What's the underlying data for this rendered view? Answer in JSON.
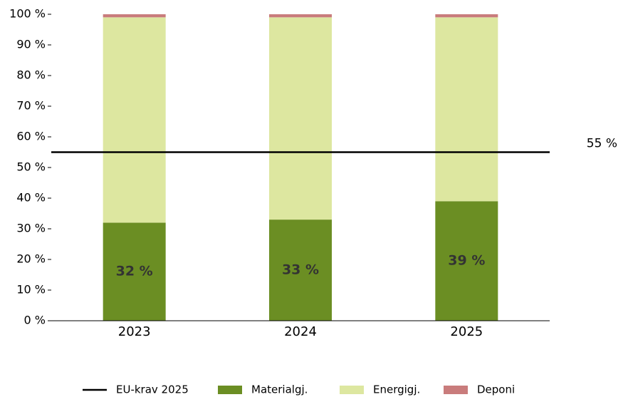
{
  "chart_data": {
    "type": "stacked_bar",
    "categories": [
      "2023",
      "2024",
      "2025"
    ],
    "series": [
      {
        "name": "Materialgj.",
        "color": "#6b8e23",
        "values": [
          32,
          33,
          39
        ],
        "value_labels": [
          "32 %",
          "33 %",
          "39 %"
        ]
      },
      {
        "name": "Energigj.",
        "color": "#dde7a0",
        "values": [
          67,
          66,
          60
        ]
      },
      {
        "name": "Deponi",
        "color": "#c97c7c",
        "values": [
          1,
          1,
          1
        ]
      }
    ],
    "reference_line": {
      "name": "EU-krav 2025",
      "value": 55,
      "label": "55 %",
      "color": "#000000"
    },
    "ylim": [
      0,
      100
    ],
    "yticks": [
      {
        "value": 0,
        "label": "0 %"
      },
      {
        "value": 10,
        "label": "10 %"
      },
      {
        "value": 20,
        "label": "20 %"
      },
      {
        "value": 30,
        "label": "30 %"
      },
      {
        "value": 40,
        "label": "40 %"
      },
      {
        "value": 50,
        "label": "50 %"
      },
      {
        "value": 60,
        "label": "60 %"
      },
      {
        "value": 70,
        "label": "70 %"
      },
      {
        "value": 80,
        "label": "80 %"
      },
      {
        "value": 90,
        "label": "90 %"
      },
      {
        "value": 100,
        "label": "100 %"
      }
    ],
    "grid": false
  }
}
